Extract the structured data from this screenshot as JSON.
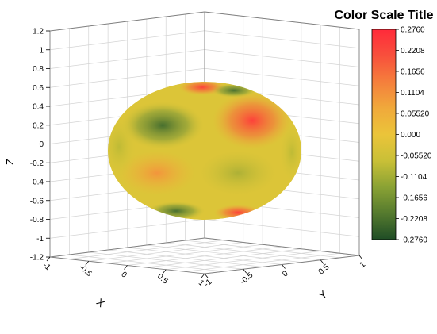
{
  "chart_data": {
    "type": "surface-3d",
    "shape": "ellipsoid",
    "colorscale": {
      "title": "Color Scale Title",
      "min": -0.276,
      "max": 0.276,
      "labels": [
        "0.2760",
        "0.2208",
        "0.1656",
        "0.1104",
        "0.05520",
        "0.000",
        "-0.05520",
        "-0.1104",
        "-0.1656",
        "-0.2208",
        "-0.2760"
      ],
      "colors": [
        "#1f4d26",
        "#557a2e",
        "#8aa234",
        "#c9c037",
        "#ebc43a",
        "#f0a93b",
        "#f57f3c",
        "#f8503c",
        "#ff2a3a"
      ]
    },
    "axes": {
      "x": {
        "label": "X",
        "range": [
          -1,
          1
        ],
        "ticks": [
          "-1",
          "-0.5",
          "0",
          "0.5",
          "1"
        ]
      },
      "y": {
        "label": "Y",
        "range": [
          -1,
          1
        ],
        "ticks": [
          "-1",
          "-0.5",
          "0",
          "0.5",
          "1"
        ]
      },
      "z": {
        "label": "Z",
        "range": [
          -1.2,
          1.2
        ],
        "ticks": [
          "-1.2",
          "-1",
          "-0.8",
          "-0.6",
          "-0.4",
          "-0.2",
          "0",
          "0.2",
          "0.4",
          "0.6",
          "0.8",
          "1",
          "1.2"
        ]
      }
    },
    "grid": true,
    "legend": "right"
  }
}
